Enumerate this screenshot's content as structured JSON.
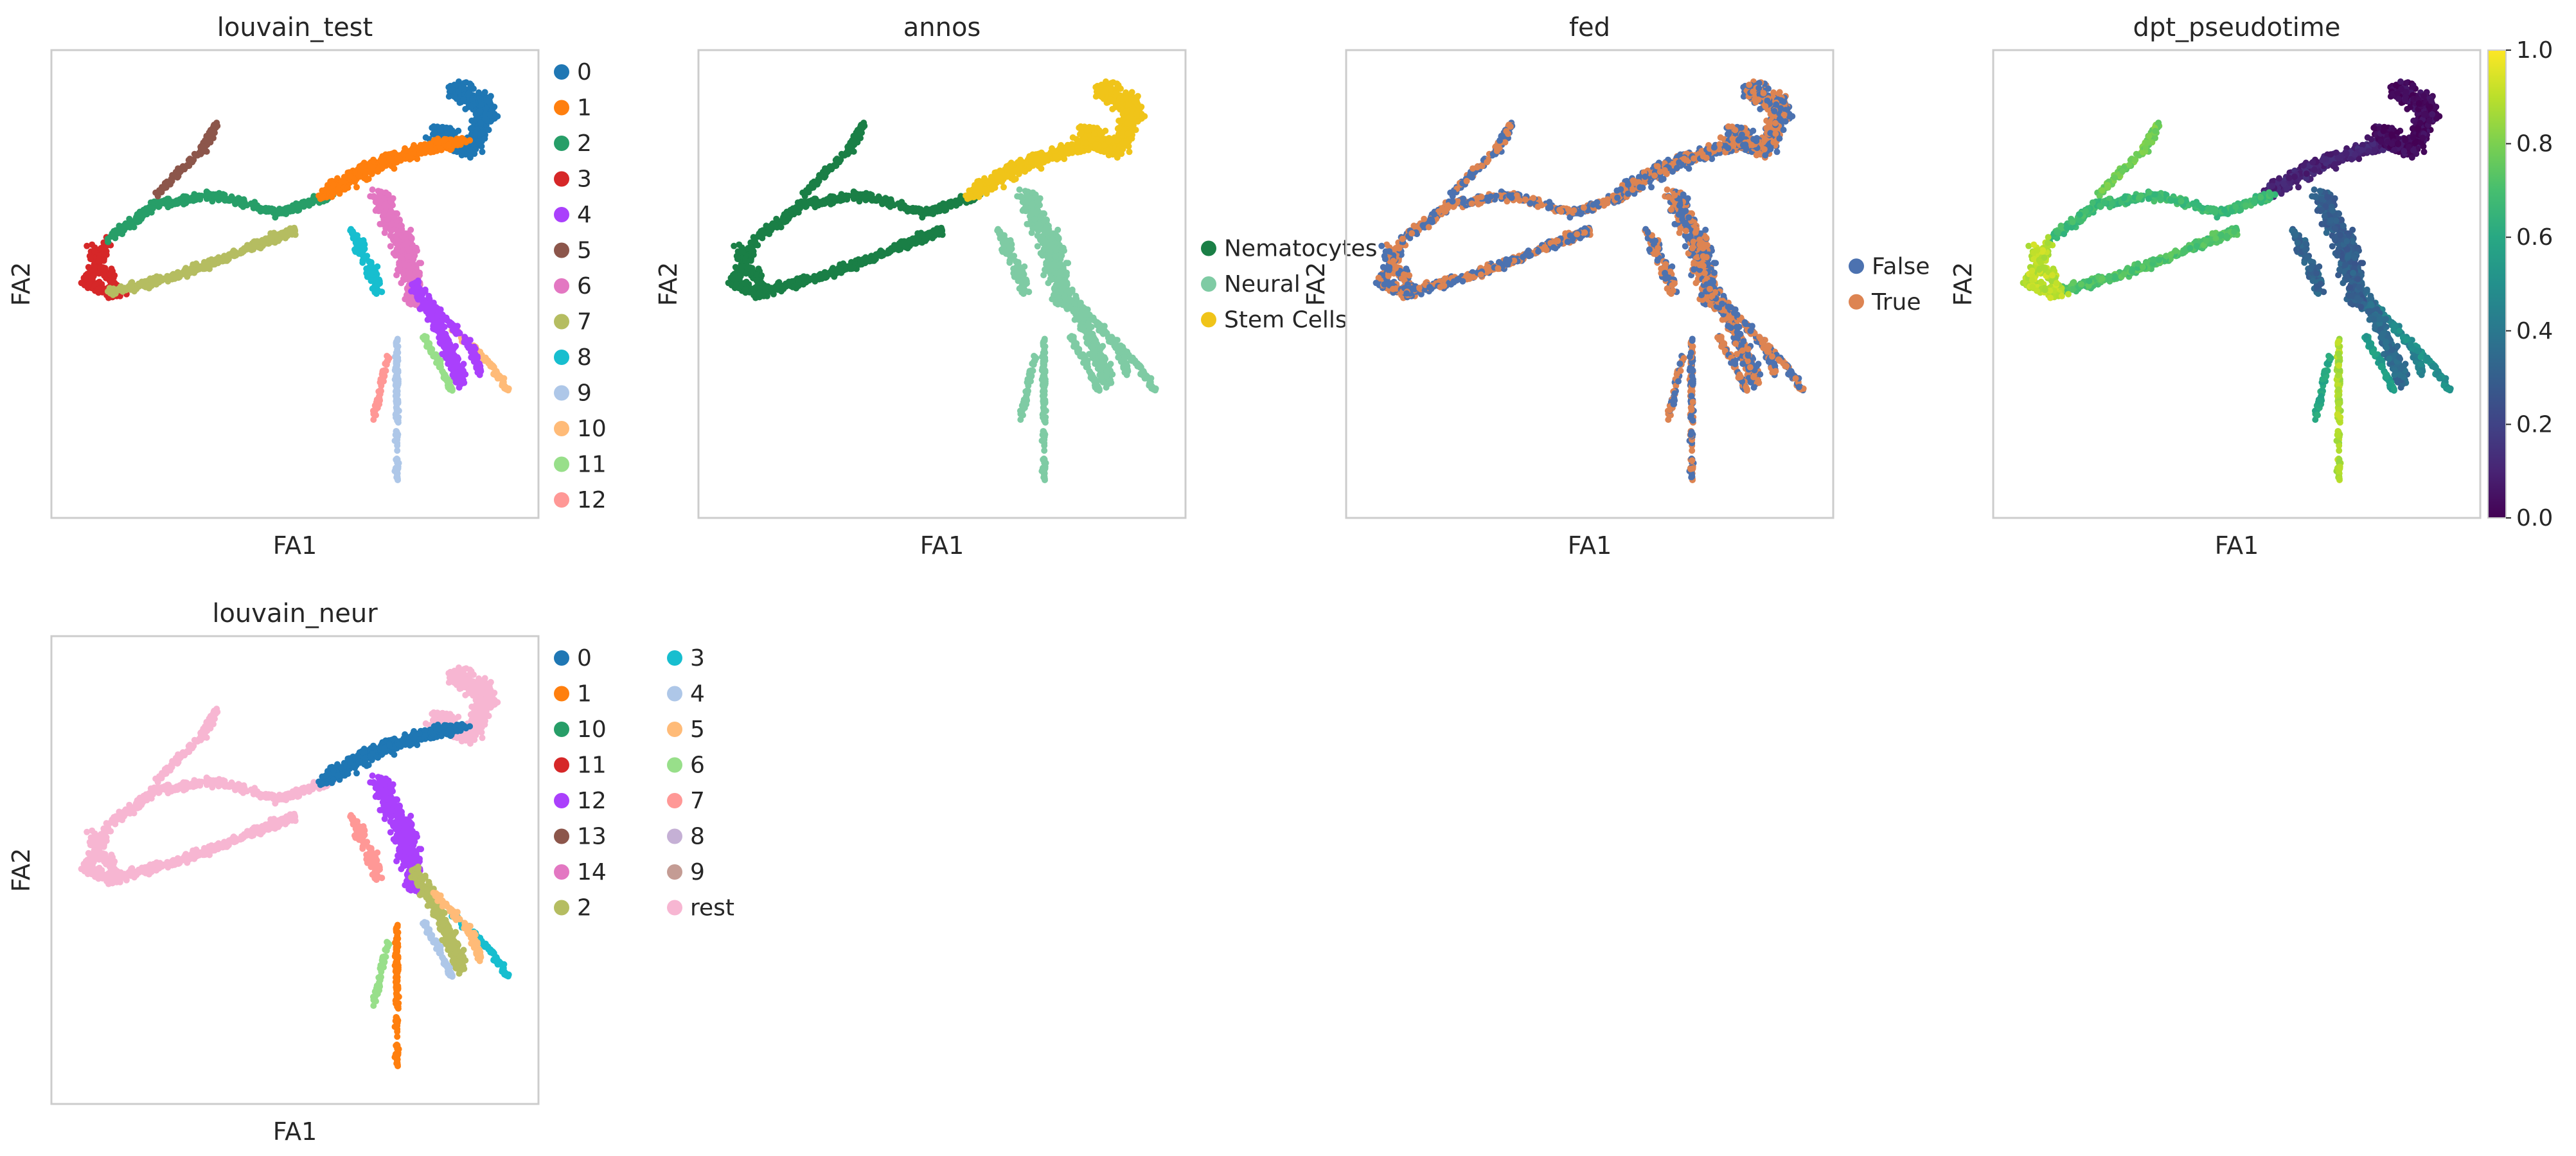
{
  "chart_data": [
    {
      "type": "scatter",
      "title": "louvain_test",
      "xlabel": "FA1",
      "ylabel": "FA2",
      "legend": {
        "placement": "right",
        "columns": 1,
        "items": [
          {
            "label": "0",
            "color": "#1f77b4"
          },
          {
            "label": "1",
            "color": "#ff7f0e"
          },
          {
            "label": "2",
            "color": "#279e68"
          },
          {
            "label": "3",
            "color": "#d62728"
          },
          {
            "label": "4",
            "color": "#aa40fc"
          },
          {
            "label": "5",
            "color": "#8c564b"
          },
          {
            "label": "6",
            "color": "#e377c2"
          },
          {
            "label": "7",
            "color": "#b5bd61"
          },
          {
            "label": "8",
            "color": "#17becf"
          },
          {
            "label": "9",
            "color": "#aec7e8"
          },
          {
            "label": "10",
            "color": "#ffbb78"
          },
          {
            "label": "11",
            "color": "#98df8a"
          },
          {
            "label": "12",
            "color": "#ff9896"
          }
        ]
      },
      "coloring": "categorical",
      "regions": {
        "loopL": "3",
        "loopLower": "7",
        "loopUpper": "2",
        "arm": "5",
        "top": "0",
        "diag": "1",
        "center": "6",
        "lowR": "4",
        "br1": "10",
        "br2": "11",
        "br3": "4",
        "stem": "9",
        "stem2": "12",
        "mid": "8"
      }
    },
    {
      "type": "scatter",
      "title": "annos",
      "xlabel": "FA1",
      "ylabel": "FA2",
      "legend": {
        "placement": "right",
        "columns": 1,
        "items": [
          {
            "label": "Nematocytes",
            "color": "#1a7f46"
          },
          {
            "label": "Neural",
            "color": "#7fcba4"
          },
          {
            "label": "Stem Cells",
            "color": "#f0c419"
          }
        ]
      },
      "coloring": "categorical",
      "regions": {
        "loopL": "Nematocytes",
        "loopLower": "Nematocytes",
        "loopUpper": "Nematocytes",
        "arm": "Nematocytes",
        "top": "Stem Cells",
        "diag": "Stem Cells",
        "center": "Neural",
        "lowR": "Neural",
        "br1": "Neural",
        "br2": "Neural",
        "br3": "Neural",
        "stem": "Neural",
        "stem2": "Neural",
        "mid": "Neural"
      }
    },
    {
      "type": "scatter",
      "title": "fed",
      "xlabel": "FA1",
      "ylabel": "FA2",
      "legend": {
        "placement": "right",
        "columns": 1,
        "items": [
          {
            "label": "False",
            "color": "#4c72b0"
          },
          {
            "label": "True",
            "color": "#dd8452"
          }
        ]
      },
      "coloring": "mixed"
    },
    {
      "type": "scatter",
      "title": "dpt_pseudotime",
      "xlabel": "FA1",
      "ylabel": "FA2",
      "coloring": "continuous",
      "colorbar": {
        "range": [
          0.0,
          1.0
        ],
        "ticks": [
          "0.0",
          "0.2",
          "0.4",
          "0.6",
          "0.8",
          "1.0"
        ],
        "colormap": "viridis"
      },
      "region_values": {
        "loopL": 0.9,
        "loopLower": 0.72,
        "loopUpper": 0.68,
        "arm": 0.78,
        "top": 0.03,
        "diag": 0.1,
        "center": 0.3,
        "lowR": 0.35,
        "br1": 0.5,
        "br2": 0.55,
        "br3": 0.45,
        "stem": 0.88,
        "stem2": 0.6,
        "mid": 0.32
      }
    },
    {
      "type": "scatter",
      "title": "louvain_neur",
      "xlabel": "FA1",
      "ylabel": "FA2",
      "legend": {
        "placement": "right",
        "columns": 2,
        "items": [
          {
            "label": "0",
            "color": "#1f77b4"
          },
          {
            "label": "1",
            "color": "#ff7f0e"
          },
          {
            "label": "10",
            "color": "#279e68"
          },
          {
            "label": "11",
            "color": "#d62728"
          },
          {
            "label": "12",
            "color": "#aa40fc"
          },
          {
            "label": "13",
            "color": "#8c564b"
          },
          {
            "label": "14",
            "color": "#e377c2"
          },
          {
            "label": "2",
            "color": "#b5bd61"
          },
          {
            "label": "3",
            "color": "#17becf"
          },
          {
            "label": "4",
            "color": "#aec7e8"
          },
          {
            "label": "5",
            "color": "#ffbb78"
          },
          {
            "label": "6",
            "color": "#98df8a"
          },
          {
            "label": "7",
            "color": "#ff9896"
          },
          {
            "label": "8",
            "color": "#c5b0d5"
          },
          {
            "label": "9",
            "color": "#c49c94"
          },
          {
            "label": "rest",
            "color": "#f7b6d2"
          }
        ]
      },
      "coloring": "categorical",
      "regions": {
        "loopL": "rest",
        "loopLower": "rest",
        "loopUpper": "rest",
        "arm": "rest",
        "top": "rest",
        "diag": "0",
        "center": "12",
        "lowR": "2",
        "br1": "3",
        "br2": "4",
        "br3": "5",
        "stem": "1",
        "stem2": "6",
        "mid": "7"
      }
    }
  ]
}
